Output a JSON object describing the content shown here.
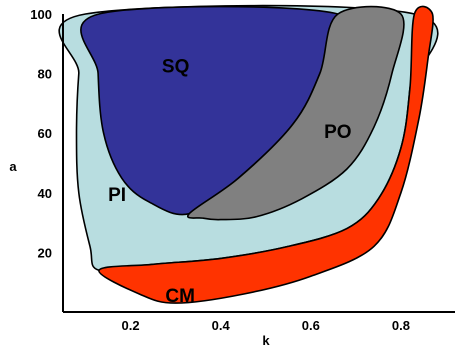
{
  "chart_data": {
    "type": "area",
    "title": "",
    "xlabel": "k",
    "ylabel": "a",
    "xlim": [
      0.05,
      0.92
    ],
    "ylim": [
      0,
      100
    ],
    "xticks": [
      0.2,
      0.4,
      0.6,
      0.8
    ],
    "yticks": [
      20,
      40,
      60,
      80,
      100
    ],
    "xtick_labels": [
      "0.2",
      "0.4",
      "0.6",
      "0.8"
    ],
    "ytick_labels": [
      "20",
      "40",
      "60",
      "80",
      "100"
    ],
    "grid": false,
    "legend": "none",
    "regions": [
      {
        "label": "PI",
        "color": "#b8dde0",
        "label_at": [
          0.17,
          39
        ],
        "boundary": [
          [
            0.1,
            100
          ],
          [
            0.085,
            80
          ],
          [
            0.08,
            60
          ],
          [
            0.085,
            40
          ],
          [
            0.11,
            22
          ],
          [
            0.13,
            14
          ],
          [
            0.25,
            16
          ],
          [
            0.4,
            18
          ],
          [
            0.55,
            22
          ],
          [
            0.68,
            28
          ],
          [
            0.75,
            38
          ],
          [
            0.8,
            55
          ],
          [
            0.82,
            75
          ],
          [
            0.83,
            100
          ]
        ]
      },
      {
        "label": "CM",
        "color": "#ff3300",
        "label_at": [
          0.31,
          5
        ],
        "boundary": [
          [
            0.13,
            14
          ],
          [
            0.25,
            16
          ],
          [
            0.4,
            18
          ],
          [
            0.55,
            22
          ],
          [
            0.68,
            28
          ],
          [
            0.75,
            38
          ],
          [
            0.8,
            55
          ],
          [
            0.82,
            75
          ],
          [
            0.83,
            100
          ],
          [
            0.87,
            100
          ],
          [
            0.86,
            85
          ],
          [
            0.84,
            65
          ],
          [
            0.8,
            40
          ],
          [
            0.74,
            22
          ],
          [
            0.6,
            12
          ],
          [
            0.45,
            6
          ],
          [
            0.3,
            3
          ],
          [
            0.22,
            6
          ]
        ]
      },
      {
        "label": "SQ",
        "color": "#333399",
        "label_at": [
          0.3,
          82
        ],
        "boundary": [
          [
            0.13,
            100
          ],
          [
            0.128,
            80
          ],
          [
            0.14,
            60
          ],
          [
            0.18,
            45
          ],
          [
            0.24,
            37
          ],
          [
            0.33,
            33
          ],
          [
            0.44,
            45
          ],
          [
            0.56,
            63
          ],
          [
            0.62,
            80
          ],
          [
            0.66,
            100
          ]
        ]
      },
      {
        "label": "PO",
        "color": "#808080",
        "label_at": [
          0.66,
          60
        ],
        "boundary": [
          [
            0.33,
            33
          ],
          [
            0.44,
            45
          ],
          [
            0.56,
            63
          ],
          [
            0.62,
            80
          ],
          [
            0.66,
            100
          ],
          [
            0.8,
            100
          ],
          [
            0.78,
            80
          ],
          [
            0.74,
            62
          ],
          [
            0.68,
            48
          ],
          [
            0.58,
            38
          ],
          [
            0.48,
            32
          ],
          [
            0.4,
            31
          ],
          [
            0.36,
            31.5
          ]
        ]
      }
    ]
  }
}
